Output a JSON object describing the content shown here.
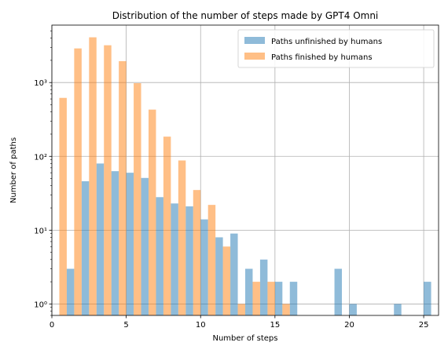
{
  "chart_data": {
    "type": "bar",
    "title": "Distribution of the number of steps made by GPT4 Omni",
    "xlabel": "Number of steps",
    "ylabel": "Number of paths",
    "xlim": [
      0,
      26
    ],
    "ylim": [
      0.7,
      6000
    ],
    "yscale": "log",
    "grid": true,
    "legend_position": "top-right",
    "x_ticks": [
      0,
      5,
      10,
      15,
      20,
      25
    ],
    "x_tick_labels": [
      "0",
      "5",
      "10",
      "15",
      "20",
      "25"
    ],
    "y_ticks": [
      1,
      10,
      100,
      1000
    ],
    "y_tick_labels": [
      "10⁰",
      "10¹",
      "10²",
      "10³"
    ],
    "series": [
      {
        "name": "Paths unfinished by humans",
        "color": "#1f77b4",
        "opacity": 0.5,
        "points": [
          {
            "x": 1,
            "y": 3
          },
          {
            "x": 2,
            "y": 46
          },
          {
            "x": 3,
            "y": 80
          },
          {
            "x": 4,
            "y": 63
          },
          {
            "x": 5,
            "y": 60
          },
          {
            "x": 6,
            "y": 51
          },
          {
            "x": 7,
            "y": 28
          },
          {
            "x": 8,
            "y": 23
          },
          {
            "x": 9,
            "y": 21
          },
          {
            "x": 10,
            "y": 14
          },
          {
            "x": 11,
            "y": 8
          },
          {
            "x": 12,
            "y": 9
          },
          {
            "x": 13,
            "y": 3
          },
          {
            "x": 14,
            "y": 4
          },
          {
            "x": 15,
            "y": 2
          },
          {
            "x": 16,
            "y": 2
          },
          {
            "x": 19,
            "y": 3
          },
          {
            "x": 20,
            "y": 1
          },
          {
            "x": 23,
            "y": 1
          },
          {
            "x": 25,
            "y": 2
          }
        ]
      },
      {
        "name": "Paths finished by humans",
        "color": "#ff7f0e",
        "opacity": 0.5,
        "points": [
          {
            "x": 1,
            "y": 620
          },
          {
            "x": 2,
            "y": 2900
          },
          {
            "x": 3,
            "y": 4100
          },
          {
            "x": 4,
            "y": 3200
          },
          {
            "x": 5,
            "y": 1950
          },
          {
            "x": 6,
            "y": 980
          },
          {
            "x": 7,
            "y": 430
          },
          {
            "x": 8,
            "y": 185
          },
          {
            "x": 9,
            "y": 88
          },
          {
            "x": 10,
            "y": 35
          },
          {
            "x": 11,
            "y": 22
          },
          {
            "x": 12,
            "y": 6
          },
          {
            "x": 13,
            "y": 1
          },
          {
            "x": 14,
            "y": 2
          },
          {
            "x": 15,
            "y": 2
          },
          {
            "x": 16,
            "y": 1
          }
        ]
      }
    ]
  }
}
